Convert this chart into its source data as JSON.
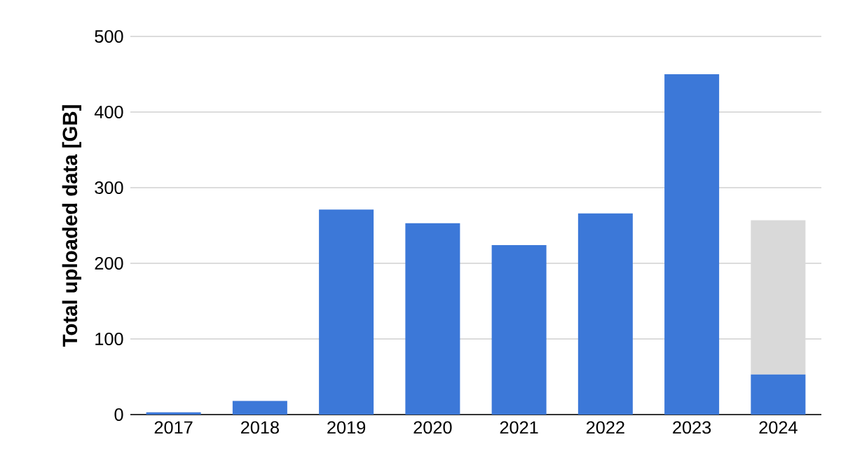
{
  "chart_data": {
    "type": "bar",
    "ylabel": "Total uploaded data [GB]",
    "categories": [
      "2017",
      "2018",
      "2019",
      "2020",
      "2021",
      "2022",
      "2023",
      "2024"
    ],
    "series": [
      {
        "color": "#3c78d8",
        "values": [
          3,
          18,
          271,
          253,
          224,
          266,
          450,
          53
        ]
      },
      {
        "color": "#d9d9d9",
        "values": [
          null,
          null,
          null,
          null,
          null,
          null,
          null,
          204
        ]
      }
    ],
    "stacked": true,
    "ylim": [
      0,
      500
    ],
    "yticks": [
      0,
      100,
      200,
      300,
      400,
      500
    ],
    "grid": "y"
  }
}
